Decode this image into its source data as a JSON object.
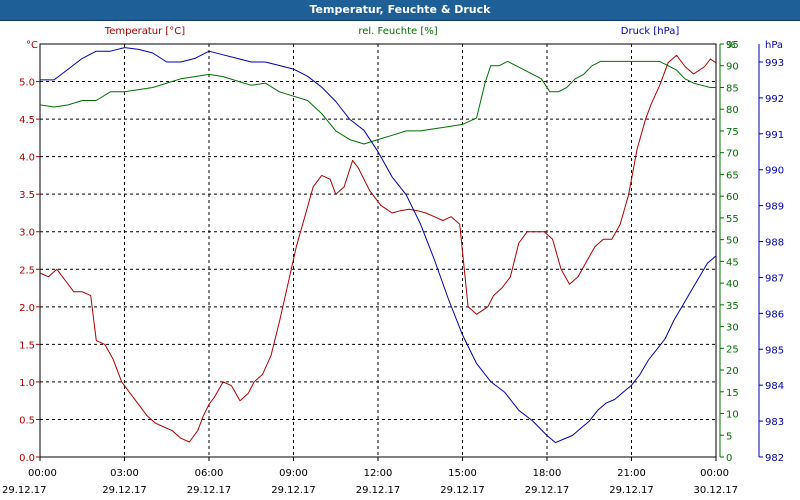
{
  "window": {
    "title": "Temperatur, Feuchte & Druck"
  },
  "chart_data": {
    "type": "line",
    "title": "Temperatur, Feuchte & Druck",
    "x_ticks": [
      {
        "time": "00:00",
        "date": "29.12.17"
      },
      {
        "time": "03:00",
        "date": "29.12.17"
      },
      {
        "time": "06:00",
        "date": "29.12.17"
      },
      {
        "time": "09:00",
        "date": "29.12.17"
      },
      {
        "time": "12:00",
        "date": "29.12.17"
      },
      {
        "time": "15:00",
        "date": "29.12.17"
      },
      {
        "time": "18:00",
        "date": "29.12.17"
      },
      {
        "time": "21:00",
        "date": "29.12.17"
      },
      {
        "time": "00:00",
        "date": "30.12.17"
      }
    ],
    "x_range_hours": [
      0,
      24
    ],
    "grid": true,
    "axes": {
      "temperature": {
        "label": "Temperatur [°C]",
        "unit": "°C",
        "range": [
          0.0,
          5.5
        ],
        "ticks": [
          "0.0",
          "0.5",
          "1.0",
          "1.5",
          "2.0",
          "2.5",
          "3.0",
          "3.5",
          "4.0",
          "4.5",
          "5.0"
        ],
        "color": "#b00000"
      },
      "humidity": {
        "label": "rel. Feuchte [%]",
        "unit": "%",
        "range": [
          0,
          95
        ],
        "ticks": [
          "0",
          "5",
          "10",
          "15",
          "20",
          "25",
          "30",
          "35",
          "40",
          "45",
          "50",
          "55",
          "60",
          "65",
          "70",
          "75",
          "80",
          "85",
          "90",
          "95"
        ],
        "color": "#007000"
      },
      "pressure": {
        "label": "Druck [hPa]",
        "unit": "hPa",
        "range": [
          982,
          993.5
        ],
        "ticks": [
          "982",
          "983",
          "984",
          "985",
          "986",
          "987",
          "988",
          "989",
          "990",
          "991",
          "992",
          "993"
        ],
        "color": "#0000b0"
      }
    },
    "series": [
      {
        "name": "Temperatur [°C]",
        "axis": "temperature",
        "color": "#b00000",
        "x": [
          0,
          0.3,
          0.6,
          0.9,
          1.2,
          1.5,
          1.8,
          2,
          2.3,
          2.6,
          2.9,
          3.2,
          3.5,
          3.8,
          4.1,
          4.4,
          4.7,
          5,
          5.3,
          5.6,
          5.8,
          6,
          6.2,
          6.5,
          6.8,
          7.1,
          7.4,
          7.6,
          7.9,
          8.2,
          8.5,
          8.8,
          9.1,
          9.4,
          9.7,
          10,
          10.3,
          10.5,
          10.8,
          11.1,
          11.3,
          11.5,
          11.7,
          11.9,
          12.1,
          12.3,
          12.5,
          12.8,
          13.1,
          13.4,
          13.7,
          14,
          14.3,
          14.6,
          14.9,
          15.2,
          15.5,
          15.7,
          15.9,
          16.1,
          16.4,
          16.7,
          17,
          17.3,
          17.6,
          17.9,
          18.2,
          18.5,
          18.8,
          19.1,
          19.4,
          19.7,
          20,
          20.3,
          20.6,
          20.9,
          21.2,
          21.5,
          21.7,
          22,
          22.3,
          22.6,
          22.9,
          23.2,
          23.4,
          23.6,
          23.8,
          24
        ],
        "values": [
          2.45,
          2.4,
          2.5,
          2.35,
          2.2,
          2.2,
          2.15,
          1.55,
          1.5,
          1.3,
          1.0,
          0.85,
          0.7,
          0.55,
          0.45,
          0.4,
          0.35,
          0.25,
          0.2,
          0.35,
          0.55,
          0.7,
          0.8,
          1.0,
          0.95,
          0.75,
          0.85,
          1.0,
          1.1,
          1.35,
          1.8,
          2.3,
          2.8,
          3.2,
          3.6,
          3.75,
          3.7,
          3.5,
          3.6,
          3.95,
          3.85,
          3.7,
          3.55,
          3.45,
          3.35,
          3.3,
          3.25,
          3.28,
          3.3,
          3.28,
          3.25,
          3.2,
          3.15,
          3.2,
          3.1,
          2.0,
          1.9,
          1.95,
          2.0,
          2.15,
          2.25,
          2.4,
          2.85,
          3.0,
          3.0,
          3.0,
          2.9,
          2.5,
          2.3,
          2.4,
          2.6,
          2.8,
          2.9,
          2.9,
          3.1,
          3.5,
          4.1,
          4.5,
          4.7,
          4.95,
          5.25,
          5.35,
          5.2,
          5.1,
          5.15,
          5.2,
          5.3,
          5.25
        ]
      },
      {
        "name": "rel. Feuchte [%]",
        "axis": "humidity",
        "color": "#007000",
        "x": [
          0,
          0.5,
          1,
          1.5,
          2,
          2.5,
          3,
          3.5,
          4,
          4.5,
          5,
          5.5,
          6,
          6.5,
          7,
          7.5,
          8,
          8.5,
          9,
          9.5,
          10,
          10.5,
          11,
          11.5,
          12,
          12.5,
          13,
          13.5,
          14,
          14.5,
          15,
          15.5,
          15.8,
          16,
          16.3,
          16.6,
          16.9,
          17.2,
          17.5,
          17.8,
          18.1,
          18.4,
          18.7,
          19,
          19.3,
          19.6,
          19.9,
          20.2,
          20.5,
          20.8,
          21.1,
          21.4,
          21.7,
          22,
          22.3,
          22.6,
          22.9,
          23.2,
          23.5,
          23.8,
          24
        ],
        "values": [
          81,
          80.5,
          81,
          82,
          82,
          84,
          84,
          84.5,
          85,
          86,
          87,
          87.5,
          88,
          87.5,
          86.5,
          85.5,
          86,
          84,
          83,
          82,
          79,
          75,
          73,
          72,
          73,
          74,
          75,
          75,
          75.5,
          76,
          76.5,
          78,
          86,
          90,
          90,
          91,
          90,
          89,
          88,
          87,
          84,
          84,
          85,
          87,
          88,
          90,
          91,
          91,
          91,
          91,
          91,
          91,
          91,
          91,
          90,
          89,
          87,
          86,
          85.5,
          85,
          85
        ]
      },
      {
        "name": "Druck [hPa]",
        "axis": "pressure",
        "color": "#0000b0",
        "x": [
          0,
          0.5,
          1,
          1.5,
          2,
          2.5,
          3,
          3.5,
          4,
          4.5,
          5,
          5.5,
          6,
          6.5,
          7,
          7.5,
          8,
          8.5,
          9,
          9.5,
          10,
          10.5,
          11,
          11.5,
          12,
          12.5,
          13,
          13.5,
          14,
          14.5,
          15,
          15.5,
          16,
          16.5,
          17,
          17.5,
          18,
          18.3,
          18.6,
          18.9,
          19.2,
          19.5,
          19.8,
          20.1,
          20.4,
          20.7,
          21,
          21.3,
          21.6,
          21.9,
          22.2,
          22.5,
          22.8,
          23.1,
          23.4,
          23.7,
          24
        ],
        "values": [
          992.5,
          992.5,
          992.8,
          993.1,
          993.3,
          993.3,
          993.4,
          993.35,
          993.25,
          993.0,
          993.0,
          993.1,
          993.3,
          993.2,
          993.1,
          993.0,
          993.0,
          992.9,
          992.8,
          992.6,
          992.3,
          991.9,
          991.4,
          991.1,
          990.5,
          989.8,
          989.3,
          988.5,
          987.5,
          986.4,
          985.4,
          984.6,
          984.1,
          983.8,
          983.3,
          983.0,
          982.6,
          982.4,
          982.5,
          982.6,
          982.8,
          983.0,
          983.3,
          983.5,
          983.6,
          983.8,
          984.0,
          984.3,
          984.7,
          985.0,
          985.3,
          985.8,
          986.2,
          986.6,
          987.0,
          987.4,
          987.6
        ]
      }
    ]
  }
}
